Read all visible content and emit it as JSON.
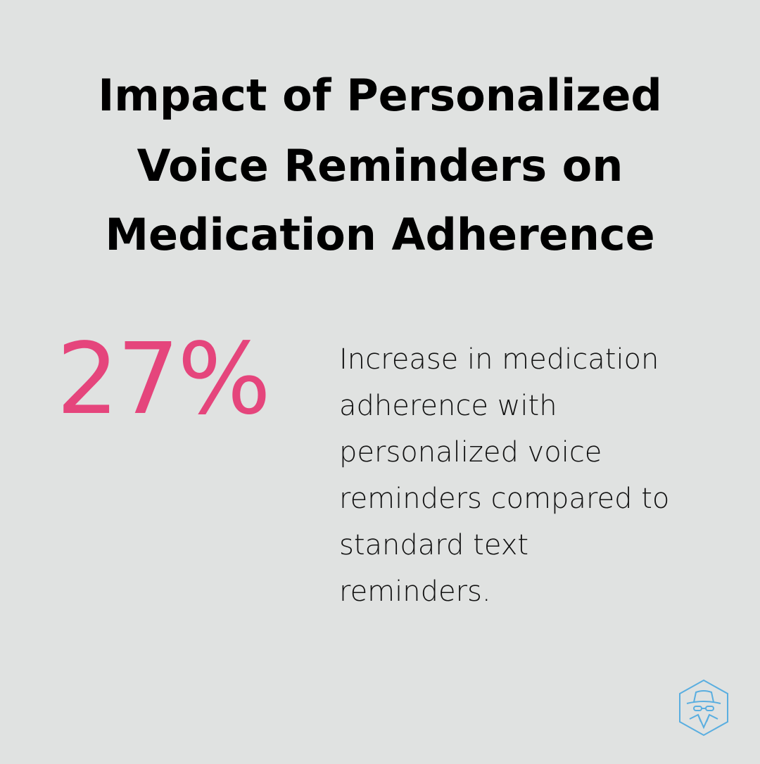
{
  "title": {
    "line1": "Impact of Personalized",
    "line2": "Voice Reminders on",
    "line3": "Medication Adherence"
  },
  "stat": {
    "value": "27%",
    "description_lines": [
      "Increase in medication",
      "adherence with",
      "personalized voice",
      "reminders compared to",
      "standard text",
      "reminders."
    ]
  },
  "logo": {
    "icon": "spy-hexagon-icon",
    "color": "#5aaee0"
  },
  "colors": {
    "background": "#e0e2e1",
    "accent": "#e5457c",
    "text": "#000000"
  }
}
